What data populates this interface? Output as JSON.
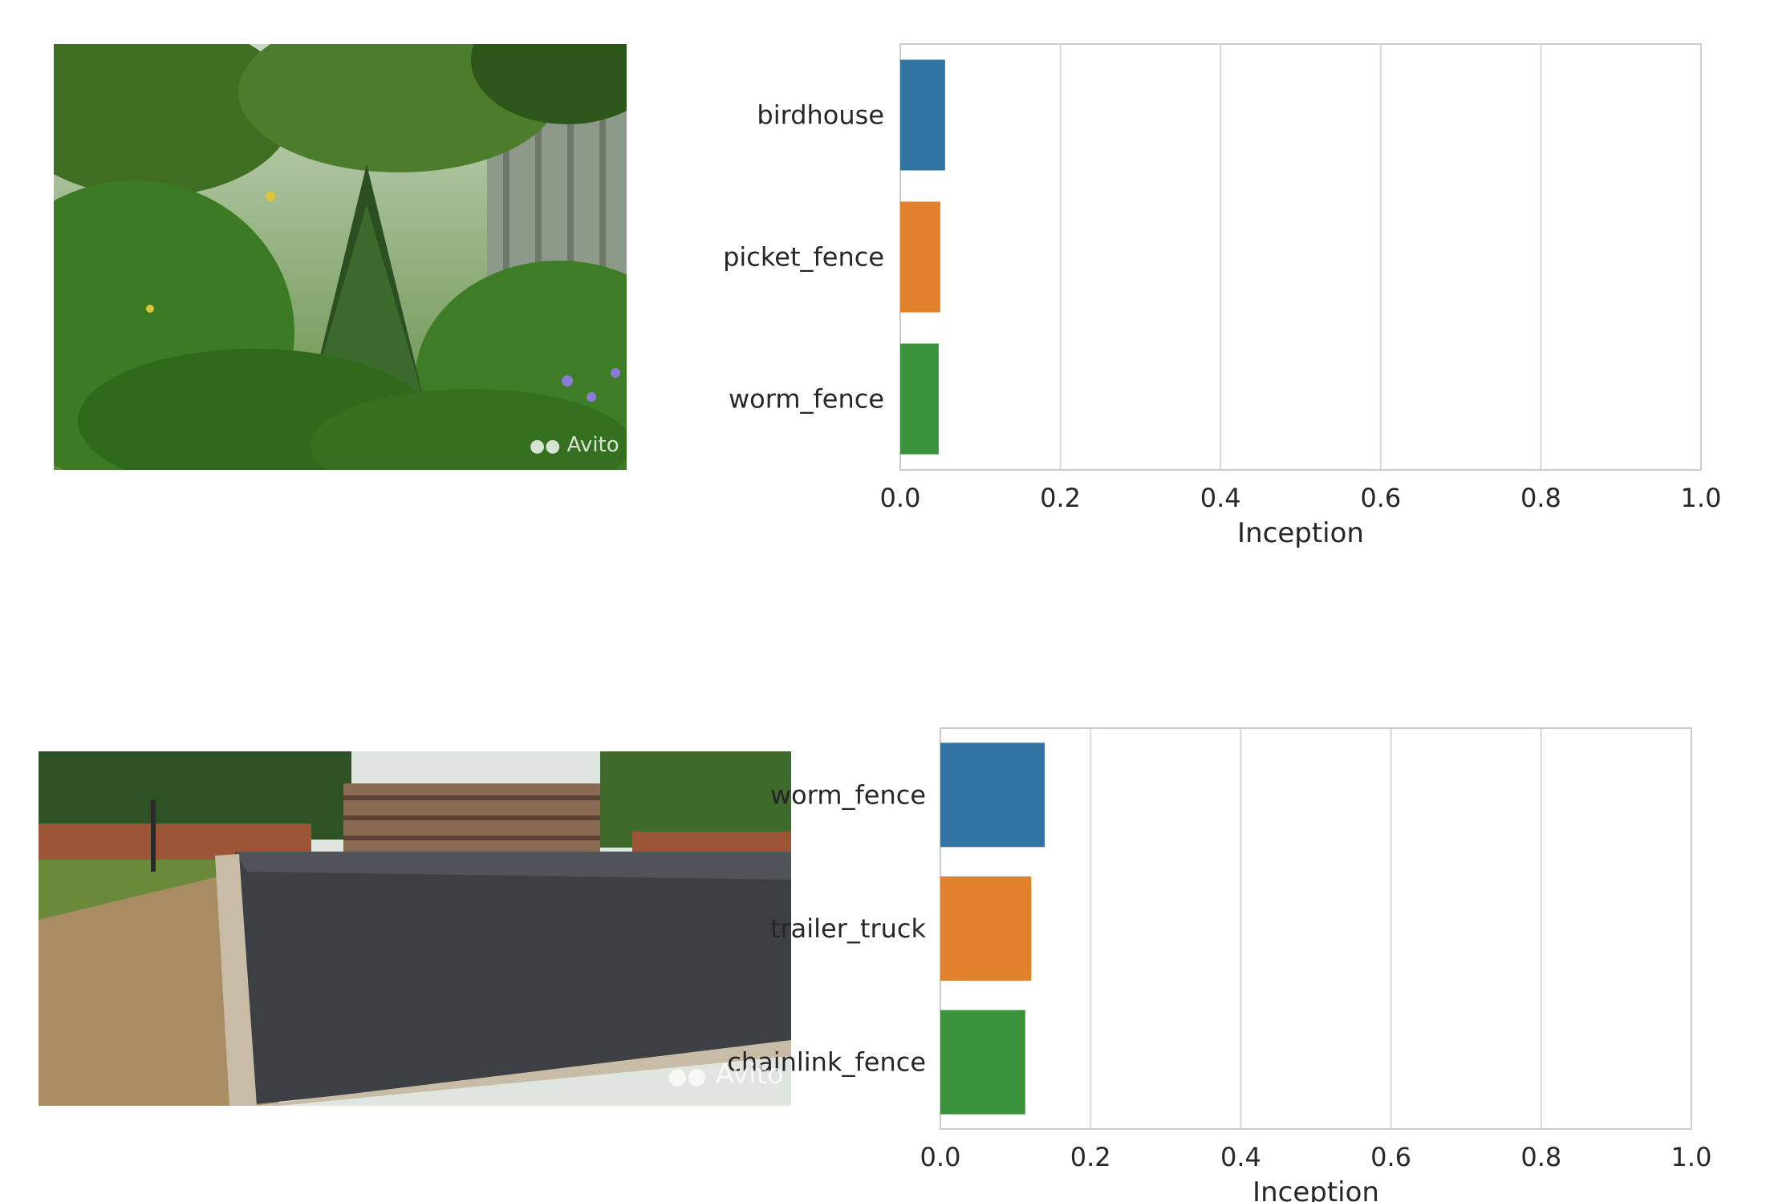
{
  "images": [
    {
      "watermark": "Avito",
      "icon": "garden-bushes-photo"
    },
    {
      "watermark": "Avito",
      "icon": "asphalt-lot-photo"
    }
  ],
  "chart_data": [
    {
      "type": "bar",
      "orientation": "horizontal",
      "categories": [
        "birdhouse",
        "picket_fence",
        "worm_fence"
      ],
      "values": [
        0.056,
        0.05,
        0.048
      ],
      "colors": [
        "#3274a1",
        "#e1812c",
        "#3a923a"
      ],
      "xlabel": "Inception",
      "xlim": [
        0,
        1.0
      ],
      "xticks": [
        "0.0",
        "0.2",
        "0.4",
        "0.6",
        "0.8",
        "1.0"
      ],
      "grid": "vertical"
    },
    {
      "type": "bar",
      "orientation": "horizontal",
      "categories": [
        "worm_fence",
        "trailer_truck",
        "chainlink_fence"
      ],
      "values": [
        0.139,
        0.121,
        0.113
      ],
      "colors": [
        "#3274a1",
        "#e1812c",
        "#3a923a"
      ],
      "xlabel": "Inception",
      "xlim": [
        0,
        1.0
      ],
      "xticks": [
        "0.0",
        "0.2",
        "0.4",
        "0.6",
        "0.8",
        "1.0"
      ],
      "grid": "vertical"
    }
  ]
}
